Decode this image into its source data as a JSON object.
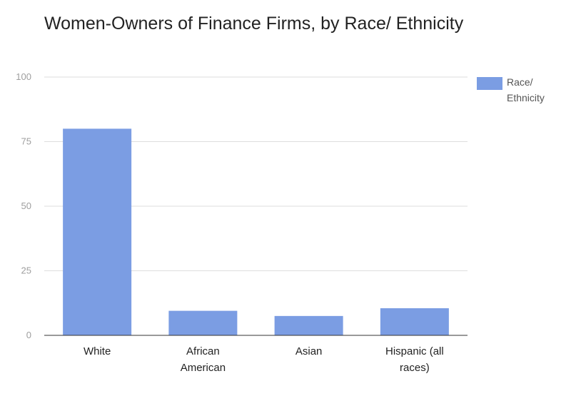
{
  "chart_data": {
    "type": "bar",
    "title": "Women-Owners of Finance Firms, by Race/ Ethnicity",
    "categories": [
      "White",
      "African American",
      "Asian",
      "Hispanic (all races)"
    ],
    "category_label_lines": [
      [
        "White"
      ],
      [
        "African",
        "American"
      ],
      [
        "Asian"
      ],
      [
        "Hispanic (all",
        "races)"
      ]
    ],
    "series": [
      {
        "name": "Race/ Ethnicity",
        "values": [
          80,
          9.5,
          7.5,
          10.5
        ]
      }
    ],
    "ylim": [
      0,
      100
    ],
    "yticks": [
      0,
      25,
      50,
      75,
      100
    ],
    "grid": true,
    "legend": "right",
    "bar_color": "#7b9de3"
  }
}
